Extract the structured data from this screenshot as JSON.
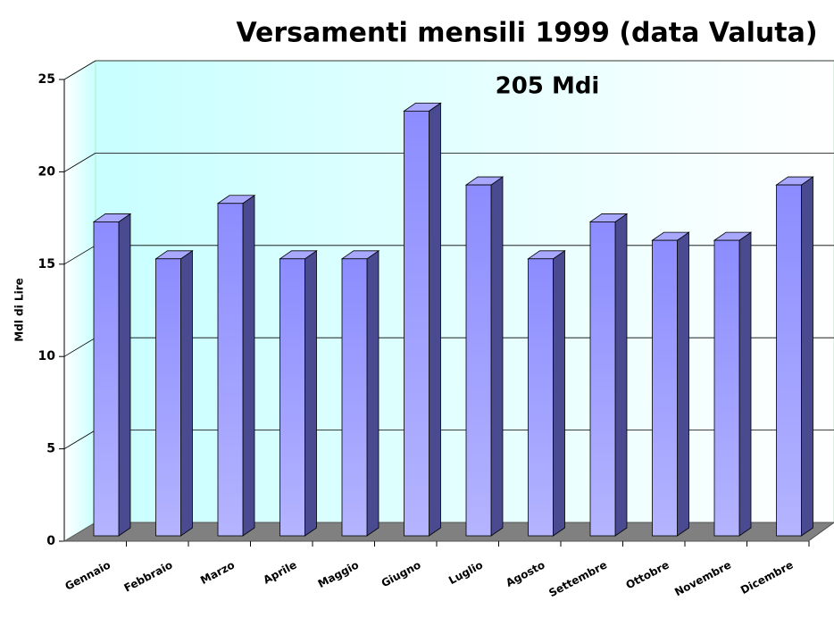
{
  "chart_data": {
    "type": "bar",
    "title": "Versamenti mensili 1999  (data Valuta)",
    "annotation": "205 Mdi",
    "ylabel": "Mdl di Lire",
    "categories": [
      "Gennaio",
      "Febbraio",
      "Marzo",
      "Aprile",
      "Maggio",
      "Giugno",
      "Luglio",
      "Agosto",
      "Settembre",
      "Ottobre",
      "Novembre",
      "Dicembre"
    ],
    "values": [
      17,
      15,
      18,
      15,
      15,
      23,
      19,
      15,
      17,
      16,
      16,
      19
    ],
    "color": "#9999ff",
    "ylim": [
      0,
      25
    ],
    "yticks": [
      0,
      5,
      10,
      15,
      20,
      25
    ],
    "grid": true
  }
}
